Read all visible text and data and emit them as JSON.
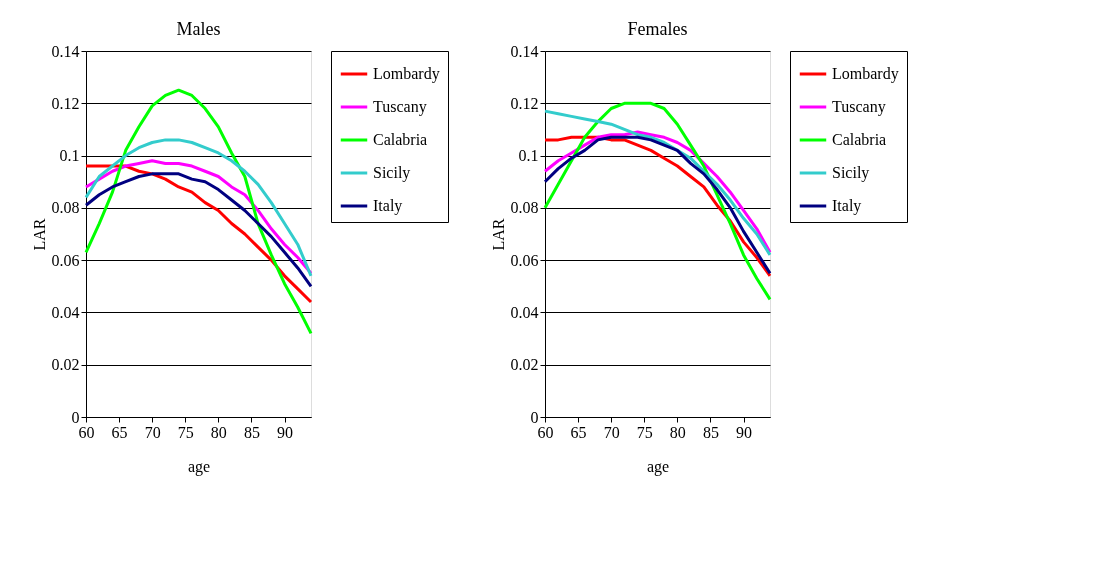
{
  "chart_data": [
    {
      "type": "line",
      "title": "Males",
      "xlabel": "age",
      "ylabel": "LAR",
      "x": [
        60,
        62,
        64,
        66,
        68,
        70,
        72,
        74,
        76,
        78,
        80,
        82,
        84,
        86,
        88,
        90,
        92,
        94
      ],
      "xlim": [
        60,
        94
      ],
      "xticks": [
        60,
        65,
        70,
        75,
        80,
        85,
        90
      ],
      "ylim": [
        0,
        0.14
      ],
      "yticks": [
        0,
        0.02,
        0.04,
        0.06,
        0.08,
        0.1,
        0.12,
        0.14
      ],
      "grid": "y",
      "legend": "right",
      "line_style": "solid",
      "marker": "none",
      "series": [
        {
          "name": "Lombardy",
          "color": "#ff0000",
          "values": [
            0.096,
            0.096,
            0.096,
            0.096,
            0.094,
            0.093,
            0.091,
            0.088,
            0.086,
            0.082,
            0.079,
            0.074,
            0.07,
            0.065,
            0.06,
            0.054,
            0.049,
            0.044
          ]
        },
        {
          "name": "Tuscany",
          "color": "#ff00ff",
          "values": [
            0.088,
            0.091,
            0.094,
            0.096,
            0.097,
            0.098,
            0.097,
            0.097,
            0.096,
            0.094,
            0.092,
            0.088,
            0.085,
            0.079,
            0.072,
            0.066,
            0.061,
            0.055
          ]
        },
        {
          "name": "Calabria",
          "color": "#00ff00",
          "values": [
            0.063,
            0.074,
            0.086,
            0.102,
            0.111,
            0.119,
            0.123,
            0.125,
            0.123,
            0.118,
            0.111,
            0.101,
            0.092,
            0.074,
            0.062,
            0.051,
            0.042,
            0.032
          ]
        },
        {
          "name": "Sicily",
          "color": "#33cccc",
          "values": [
            0.084,
            0.092,
            0.096,
            0.1,
            0.103,
            0.105,
            0.106,
            0.106,
            0.105,
            0.103,
            0.101,
            0.098,
            0.094,
            0.089,
            0.082,
            0.074,
            0.066,
            0.054
          ]
        },
        {
          "name": "Italy",
          "color": "#000080",
          "values": [
            0.081,
            0.085,
            0.088,
            0.09,
            0.092,
            0.093,
            0.093,
            0.093,
            0.091,
            0.09,
            0.087,
            0.083,
            0.079,
            0.074,
            0.069,
            0.063,
            0.057,
            0.05
          ]
        }
      ]
    },
    {
      "type": "line",
      "title": "Females",
      "xlabel": "age",
      "ylabel": "LAR",
      "x": [
        60,
        62,
        64,
        66,
        68,
        70,
        72,
        74,
        76,
        78,
        80,
        82,
        84,
        86,
        88,
        90,
        92,
        94
      ],
      "xlim": [
        60,
        94
      ],
      "xticks": [
        60,
        65,
        70,
        75,
        80,
        85,
        90
      ],
      "ylim": [
        0,
        0.14
      ],
      "yticks": [
        0,
        0.02,
        0.04,
        0.06,
        0.08,
        0.1,
        0.12,
        0.14
      ],
      "grid": "y",
      "legend": "right",
      "line_style": "solid",
      "marker": "none",
      "series": [
        {
          "name": "Lombardy",
          "color": "#ff0000",
          "values": [
            0.106,
            0.106,
            0.107,
            0.107,
            0.107,
            0.106,
            0.106,
            0.104,
            0.102,
            0.099,
            0.096,
            0.092,
            0.088,
            0.081,
            0.075,
            0.067,
            0.061,
            0.054
          ]
        },
        {
          "name": "Tuscany",
          "color": "#ff00ff",
          "values": [
            0.094,
            0.098,
            0.101,
            0.104,
            0.107,
            0.108,
            0.108,
            0.109,
            0.108,
            0.107,
            0.105,
            0.102,
            0.097,
            0.092,
            0.086,
            0.079,
            0.072,
            0.063
          ]
        },
        {
          "name": "Calabria",
          "color": "#00ff00",
          "values": [
            0.08,
            0.089,
            0.098,
            0.107,
            0.113,
            0.118,
            0.12,
            0.12,
            0.12,
            0.118,
            0.112,
            0.104,
            0.096,
            0.085,
            0.074,
            0.062,
            0.053,
            0.045
          ]
        },
        {
          "name": "Sicily",
          "color": "#33cccc",
          "values": [
            0.117,
            0.116,
            0.115,
            0.114,
            0.113,
            0.112,
            0.11,
            0.108,
            0.107,
            0.105,
            0.102,
            0.099,
            0.094,
            0.089,
            0.083,
            0.076,
            0.07,
            0.062
          ]
        },
        {
          "name": "Italy",
          "color": "#000080",
          "values": [
            0.09,
            0.095,
            0.099,
            0.102,
            0.106,
            0.107,
            0.107,
            0.107,
            0.106,
            0.104,
            0.102,
            0.097,
            0.093,
            0.087,
            0.08,
            0.071,
            0.063,
            0.055
          ]
        }
      ]
    }
  ]
}
